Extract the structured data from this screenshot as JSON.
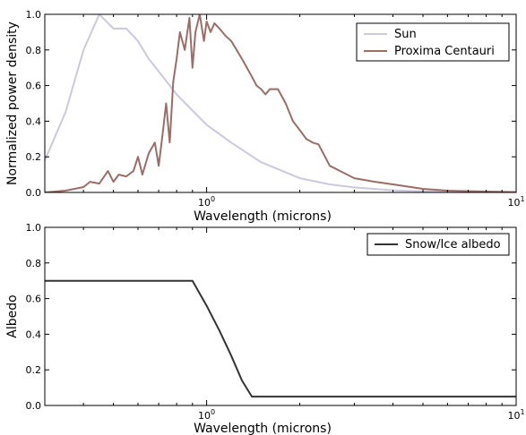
{
  "chart_data": [
    {
      "type": "line",
      "xscale": "log",
      "xlim": [
        0.3,
        10
      ],
      "ylim": [
        0.0,
        1.0
      ],
      "xlabel": "Wavelength (microns)",
      "ylabel": "Normalized power density",
      "x_ticks": [
        {
          "value": 1,
          "label": "10^0"
        },
        {
          "value": 10,
          "label": "10^1"
        }
      ],
      "y_ticks": [
        "0.0",
        "0.2",
        "0.4",
        "0.6",
        "0.8",
        "1.0"
      ],
      "legend_position": "top-right",
      "series": [
        {
          "name": "Sun",
          "color": "#ccc8de",
          "x": [
            0.3,
            0.35,
            0.4,
            0.45,
            0.5,
            0.55,
            0.6,
            0.65,
            0.7,
            0.8,
            0.9,
            1.0,
            1.2,
            1.5,
            2.0,
            2.5,
            3.0,
            4.0,
            5.0,
            7.0,
            10.0
          ],
          "y": [
            0.18,
            0.45,
            0.8,
            1.0,
            0.92,
            0.92,
            0.85,
            0.75,
            0.68,
            0.55,
            0.46,
            0.38,
            0.28,
            0.17,
            0.08,
            0.045,
            0.028,
            0.012,
            0.006,
            0.002,
            0.001
          ]
        },
        {
          "name": "Proxima Centauri",
          "color": "#9a6e67",
          "x": [
            0.3,
            0.35,
            0.4,
            0.42,
            0.45,
            0.48,
            0.5,
            0.52,
            0.55,
            0.58,
            0.6,
            0.62,
            0.65,
            0.68,
            0.7,
            0.72,
            0.74,
            0.76,
            0.78,
            0.8,
            0.82,
            0.85,
            0.88,
            0.9,
            0.92,
            0.95,
            0.98,
            1.0,
            1.03,
            1.06,
            1.1,
            1.15,
            1.2,
            1.25,
            1.3,
            1.35,
            1.4,
            1.45,
            1.5,
            1.55,
            1.6,
            1.7,
            1.8,
            1.9,
            2.0,
            2.1,
            2.2,
            2.3,
            2.5,
            2.7,
            3.0,
            3.5,
            4.0,
            5.0,
            6.0,
            8.0,
            10.0
          ],
          "y": [
            0.0,
            0.01,
            0.03,
            0.06,
            0.05,
            0.12,
            0.06,
            0.1,
            0.09,
            0.12,
            0.2,
            0.1,
            0.22,
            0.28,
            0.15,
            0.32,
            0.5,
            0.28,
            0.62,
            0.75,
            0.9,
            0.8,
            0.98,
            0.7,
            0.9,
            1.0,
            0.85,
            0.96,
            0.9,
            0.95,
            0.92,
            0.88,
            0.85,
            0.8,
            0.75,
            0.7,
            0.65,
            0.6,
            0.58,
            0.55,
            0.58,
            0.58,
            0.5,
            0.4,
            0.35,
            0.3,
            0.28,
            0.27,
            0.15,
            0.12,
            0.08,
            0.06,
            0.045,
            0.02,
            0.01,
            0.005,
            0.002
          ]
        }
      ]
    },
    {
      "type": "line",
      "xscale": "log",
      "xlim": [
        0.3,
        10
      ],
      "ylim": [
        0.0,
        1.0
      ],
      "xlabel": "Wavelength (microns)",
      "ylabel": "Albedo",
      "x_ticks": [
        {
          "value": 1,
          "label": "10^0"
        },
        {
          "value": 10,
          "label": "10^1"
        }
      ],
      "y_ticks": [
        "0.0",
        "0.2",
        "0.4",
        "0.6",
        "0.8",
        "1.0"
      ],
      "legend_position": "top-right",
      "series": [
        {
          "name": "Snow/Ice albedo",
          "color": "#333333",
          "x": [
            0.3,
            0.9,
            1.0,
            1.1,
            1.2,
            1.3,
            1.4,
            10.0
          ],
          "y": [
            0.7,
            0.7,
            0.56,
            0.42,
            0.28,
            0.14,
            0.05,
            0.05
          ]
        }
      ]
    }
  ]
}
